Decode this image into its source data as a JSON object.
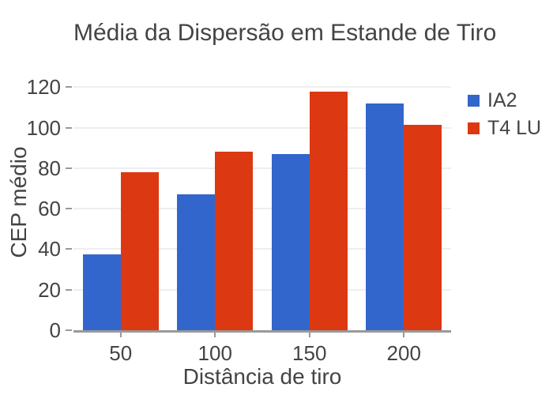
{
  "chart_data": {
    "type": "bar",
    "title": "Média da Dispersão em Estande de Tiro",
    "xlabel": "Distância de tiro",
    "ylabel": "CEP médio",
    "categories": [
      "50",
      "100",
      "150",
      "200"
    ],
    "series": [
      {
        "name": "IA2",
        "color": "#3366CC",
        "values": [
          37.5,
          67,
          87,
          112
        ]
      },
      {
        "name": "T4 LU",
        "color": "#DC3912",
        "values": [
          78,
          88,
          118,
          101.5
        ]
      }
    ],
    "ylim": [
      0,
      126
    ],
    "yticks": [
      0,
      20,
      40,
      60,
      80,
      100,
      120
    ],
    "grid": true,
    "legend_position": "right-top",
    "colors": {
      "text": "#444444",
      "axis": "#999999",
      "gridline": "#eeeeee",
      "background": "#ffffff"
    }
  }
}
